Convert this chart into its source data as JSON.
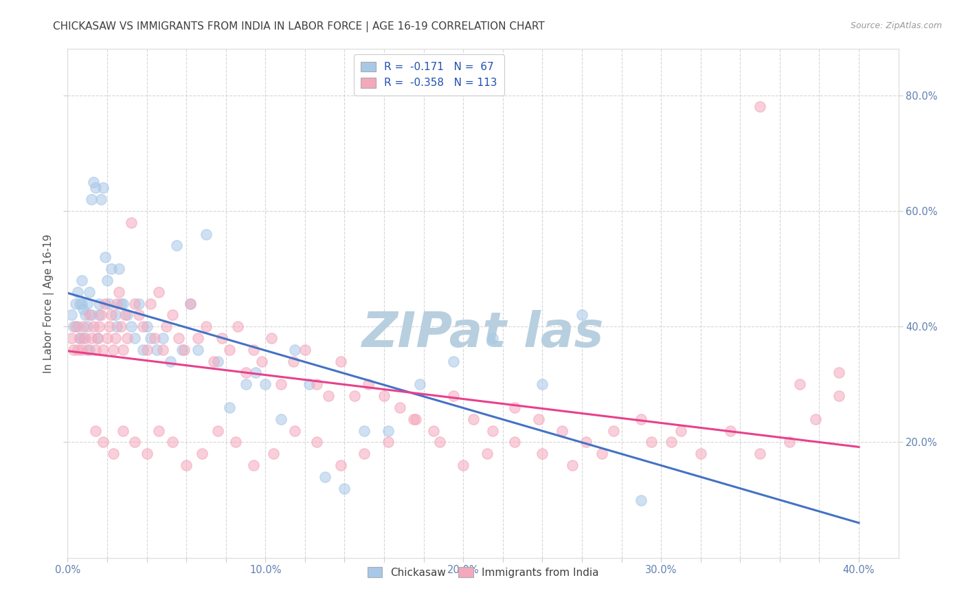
{
  "title": "CHICKASAW VS IMMIGRANTS FROM INDIA IN LABOR FORCE | AGE 16-19 CORRELATION CHART",
  "source": "Source: ZipAtlas.com",
  "ylabel": "In Labor Force | Age 16-19",
  "xlim": [
    0.0,
    0.42
  ],
  "ylim": [
    0.0,
    0.88
  ],
  "xtick_labels": [
    "0.0%",
    "",
    "",
    "",
    "",
    "10.0%",
    "",
    "",
    "",
    "",
    "20.0%",
    "",
    "",
    "",
    "",
    "30.0%",
    "",
    "",
    "",
    "",
    "40.0%"
  ],
  "xtick_vals": [
    0.0,
    0.02,
    0.04,
    0.06,
    0.08,
    0.1,
    0.12,
    0.14,
    0.16,
    0.18,
    0.2,
    0.22,
    0.24,
    0.26,
    0.28,
    0.3,
    0.32,
    0.34,
    0.36,
    0.38,
    0.4
  ],
  "ytick_labels_right": [
    "20.0%",
    "40.0%",
    "60.0%",
    "80.0%"
  ],
  "ytick_vals_right": [
    0.2,
    0.4,
    0.6,
    0.8
  ],
  "legend_labels_top": [
    "R =  -0.171   N =  67",
    "R =  -0.358   N = 113"
  ],
  "legend_labels_bottom": [
    "Chickasaw",
    "Immigrants from India"
  ],
  "chickasaw_color": "#a8c8e8",
  "india_color": "#f4a8bc",
  "regression_chickasaw_color": "#4472c4",
  "regression_india_color": "#e8408c",
  "watermark": "ZIPat las",
  "watermark_color": "#b8cfe0",
  "background_color": "#ffffff",
  "grid_color": "#cccccc",
  "title_color": "#404040",
  "axis_label_color": "#505050",
  "tick_label_color": "#6080b0",
  "chickasaw_x": [
    0.002,
    0.003,
    0.004,
    0.005,
    0.005,
    0.006,
    0.006,
    0.007,
    0.007,
    0.008,
    0.008,
    0.009,
    0.01,
    0.01,
    0.011,
    0.011,
    0.012,
    0.012,
    0.013,
    0.014,
    0.015,
    0.016,
    0.016,
    0.017,
    0.018,
    0.019,
    0.02,
    0.021,
    0.022,
    0.024,
    0.025,
    0.026,
    0.027,
    0.028,
    0.03,
    0.032,
    0.034,
    0.036,
    0.038,
    0.04,
    0.042,
    0.045,
    0.048,
    0.052,
    0.055,
    0.058,
    0.062,
    0.066,
    0.07,
    0.076,
    0.082,
    0.09,
    0.095,
    0.1,
    0.108,
    0.115,
    0.122,
    0.13,
    0.14,
    0.15,
    0.162,
    0.178,
    0.195,
    0.215,
    0.24,
    0.26,
    0.29
  ],
  "chickasaw_y": [
    0.42,
    0.4,
    0.44,
    0.46,
    0.4,
    0.44,
    0.38,
    0.44,
    0.48,
    0.38,
    0.43,
    0.42,
    0.44,
    0.4,
    0.46,
    0.36,
    0.42,
    0.62,
    0.65,
    0.64,
    0.38,
    0.44,
    0.42,
    0.62,
    0.64,
    0.52,
    0.48,
    0.44,
    0.5,
    0.42,
    0.4,
    0.5,
    0.44,
    0.44,
    0.42,
    0.4,
    0.38,
    0.44,
    0.36,
    0.4,
    0.38,
    0.36,
    0.38,
    0.34,
    0.54,
    0.36,
    0.44,
    0.36,
    0.56,
    0.34,
    0.26,
    0.3,
    0.32,
    0.3,
    0.24,
    0.36,
    0.3,
    0.14,
    0.12,
    0.22,
    0.22,
    0.3,
    0.34,
    0.38,
    0.3,
    0.42,
    0.1
  ],
  "india_x": [
    0.002,
    0.003,
    0.004,
    0.005,
    0.006,
    0.007,
    0.008,
    0.009,
    0.01,
    0.011,
    0.012,
    0.013,
    0.014,
    0.015,
    0.016,
    0.017,
    0.018,
    0.019,
    0.02,
    0.021,
    0.022,
    0.023,
    0.024,
    0.025,
    0.026,
    0.027,
    0.028,
    0.029,
    0.03,
    0.032,
    0.034,
    0.036,
    0.038,
    0.04,
    0.042,
    0.044,
    0.046,
    0.048,
    0.05,
    0.053,
    0.056,
    0.059,
    0.062,
    0.066,
    0.07,
    0.074,
    0.078,
    0.082,
    0.086,
    0.09,
    0.094,
    0.098,
    0.103,
    0.108,
    0.114,
    0.12,
    0.126,
    0.132,
    0.138,
    0.145,
    0.152,
    0.16,
    0.168,
    0.176,
    0.185,
    0.195,
    0.205,
    0.215,
    0.226,
    0.238,
    0.25,
    0.262,
    0.276,
    0.29,
    0.305,
    0.32,
    0.335,
    0.35,
    0.365,
    0.378,
    0.39,
    0.295,
    0.31,
    0.27,
    0.255,
    0.24,
    0.226,
    0.212,
    0.2,
    0.188,
    0.175,
    0.162,
    0.15,
    0.138,
    0.126,
    0.115,
    0.104,
    0.094,
    0.085,
    0.076,
    0.068,
    0.06,
    0.053,
    0.046,
    0.04,
    0.034,
    0.028,
    0.023,
    0.018,
    0.014,
    0.35,
    0.37,
    0.39
  ],
  "india_y": [
    0.38,
    0.36,
    0.4,
    0.36,
    0.38,
    0.36,
    0.4,
    0.38,
    0.36,
    0.42,
    0.38,
    0.4,
    0.36,
    0.38,
    0.4,
    0.42,
    0.36,
    0.44,
    0.38,
    0.4,
    0.42,
    0.36,
    0.38,
    0.44,
    0.46,
    0.4,
    0.36,
    0.42,
    0.38,
    0.58,
    0.44,
    0.42,
    0.4,
    0.36,
    0.44,
    0.38,
    0.46,
    0.36,
    0.4,
    0.42,
    0.38,
    0.36,
    0.44,
    0.38,
    0.4,
    0.34,
    0.38,
    0.36,
    0.4,
    0.32,
    0.36,
    0.34,
    0.38,
    0.3,
    0.34,
    0.36,
    0.3,
    0.28,
    0.34,
    0.28,
    0.3,
    0.28,
    0.26,
    0.24,
    0.22,
    0.28,
    0.24,
    0.22,
    0.26,
    0.24,
    0.22,
    0.2,
    0.22,
    0.24,
    0.2,
    0.18,
    0.22,
    0.18,
    0.2,
    0.24,
    0.28,
    0.2,
    0.22,
    0.18,
    0.16,
    0.18,
    0.2,
    0.18,
    0.16,
    0.2,
    0.24,
    0.2,
    0.18,
    0.16,
    0.2,
    0.22,
    0.18,
    0.16,
    0.2,
    0.22,
    0.18,
    0.16,
    0.2,
    0.22,
    0.18,
    0.2,
    0.22,
    0.18,
    0.2,
    0.22,
    0.78,
    0.3,
    0.32
  ]
}
